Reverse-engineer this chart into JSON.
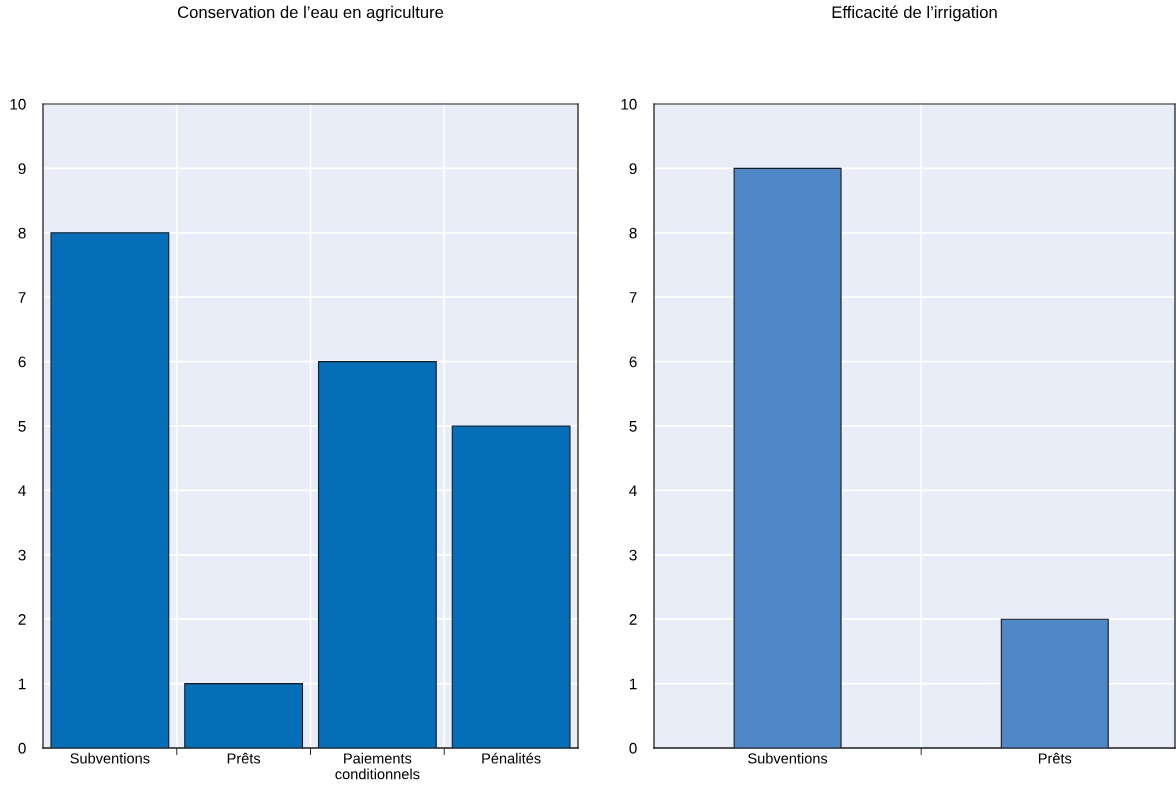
{
  "chart_data": [
    {
      "type": "bar",
      "title": "Conservation de l’eau en agriculture",
      "categories": [
        "Subventions",
        "Prêts",
        "Paiements conditionnels",
        "Pénalités"
      ],
      "values": [
        8,
        1,
        6,
        5
      ],
      "color": "#0570b9",
      "ylim": [
        0,
        10
      ],
      "yticks": [
        0,
        1,
        2,
        3,
        4,
        5,
        6,
        7,
        8,
        9,
        10
      ],
      "grid": true
    },
    {
      "type": "bar",
      "title": "Efficacité de l’irrigation",
      "categories": [
        "Subventions",
        "Prêts"
      ],
      "values": [
        9,
        2
      ],
      "color": "#4f88c8",
      "ylim": [
        0,
        10
      ],
      "yticks": [
        0,
        1,
        2,
        3,
        4,
        5,
        6,
        7,
        8,
        9,
        10
      ],
      "grid": true
    }
  ]
}
